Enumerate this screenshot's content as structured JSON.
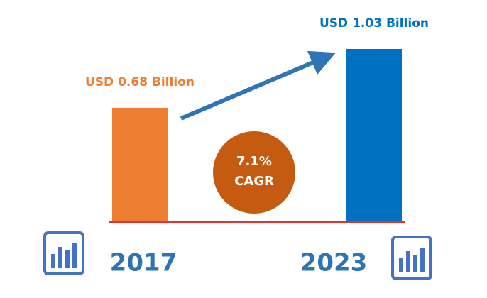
{
  "chart_data": {
    "type": "bar",
    "categories": [
      "2017",
      "2023"
    ],
    "values": [
      0.68,
      1.03
    ],
    "value_labels": [
      "USD 0.68 Billion",
      "USD 1.03 Billion"
    ],
    "colors": [
      "#ed7d31",
      "#0070c0"
    ],
    "annotations": [
      "7.1%",
      "CAGR"
    ]
  }
}
